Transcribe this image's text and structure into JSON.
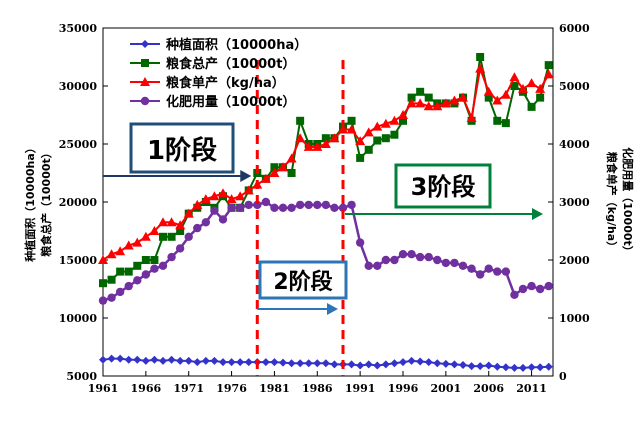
{
  "chart_data": {
    "type": "line",
    "x": [
      1961,
      1962,
      1963,
      1964,
      1965,
      1966,
      1967,
      1968,
      1969,
      1970,
      1971,
      1972,
      1973,
      1974,
      1975,
      1976,
      1977,
      1978,
      1979,
      1980,
      1981,
      1982,
      1983,
      1984,
      1985,
      1986,
      1987,
      1988,
      1989,
      1990,
      1991,
      1992,
      1993,
      1994,
      1995,
      1996,
      1997,
      1998,
      1999,
      2000,
      2001,
      2002,
      2003,
      2004,
      2005,
      2006,
      2007,
      2008,
      2009,
      2010,
      2011,
      2012,
      2013
    ],
    "xticks": [
      1961,
      1966,
      1971,
      1976,
      1981,
      1986,
      1991,
      1996,
      2001,
      2006,
      2011
    ],
    "xlim": [
      1961,
      2013.5
    ],
    "ylim_left": [
      5000,
      35000
    ],
    "yticks_left": [
      5000,
      10000,
      15000,
      20000,
      25000,
      30000,
      35000
    ],
    "ylim_right": [
      0,
      6000
    ],
    "yticks_right": [
      0,
      1000,
      2000,
      3000,
      4000,
      5000,
      6000
    ],
    "ylabel_left": [
      "种植面积（10000ha）",
      "粮食总产（10000t）"
    ],
    "ylabel_right": [
      "粮食单产（kg/ha）",
      "化肥用量（10000t）"
    ],
    "series": [
      {
        "name": "种植面积（10000ha）",
        "axis": "left",
        "color": "#3333cc",
        "marker": "diamond",
        "values": [
          6400,
          6500,
          6500,
          6400,
          6400,
          6300,
          6400,
          6300,
          6400,
          6300,
          6300,
          6200,
          6300,
          6300,
          6200,
          6200,
          6200,
          6200,
          6200,
          6200,
          6200,
          6150,
          6100,
          6100,
          6100,
          6100,
          6100,
          6000,
          6000,
          6000,
          5900,
          6000,
          5900,
          6000,
          6100,
          6200,
          6300,
          6250,
          6200,
          6100,
          6050,
          6000,
          5950,
          5850,
          5850,
          5900,
          5800,
          5750,
          5700,
          5700,
          5750,
          5750,
          5800
        ]
      },
      {
        "name": "粮食总产（10000t）",
        "axis": "left",
        "color": "#006600",
        "marker": "square",
        "values": [
          13000,
          13300,
          14000,
          14000,
          14500,
          15000,
          15000,
          17000,
          17000,
          17500,
          19000,
          19500,
          20000,
          19500,
          20500,
          19500,
          19500,
          21000,
          22500,
          22000,
          23000,
          23000,
          22500,
          27000,
          25000,
          25000,
          25500,
          25500,
          26500,
          27000,
          23800,
          24500,
          25300,
          25500,
          25800,
          27000,
          29000,
          29500,
          29000,
          28500,
          28500,
          28500,
          29000,
          27000,
          32500,
          29000,
          27000,
          26800,
          30000,
          29500,
          28200,
          29000,
          31800
        ]
      },
      {
        "name": "粮食单产（kg/ha）",
        "axis": "right",
        "color": "#ff0000",
        "marker": "triangle",
        "values": [
          2000,
          2100,
          2150,
          2250,
          2300,
          2400,
          2500,
          2650,
          2650,
          2600,
          2800,
          2950,
          3050,
          3100,
          3150,
          3050,
          3100,
          3200,
          3300,
          3400,
          3500,
          3600,
          3750,
          4100,
          3950,
          3950,
          4000,
          4100,
          4250,
          4250,
          4050,
          4200,
          4300,
          4350,
          4400,
          4500,
          4700,
          4700,
          4650,
          4650,
          4700,
          4750,
          4800,
          4450,
          5300,
          4900,
          4750,
          4850,
          5150,
          4950,
          5050,
          4950,
          5200
        ]
      },
      {
        "name": "化肥用量（10000t）",
        "axis": "right",
        "color": "#7030a0",
        "marker": "circle",
        "values": [
          1300,
          1350,
          1450,
          1550,
          1650,
          1750,
          1850,
          1900,
          2050,
          2200,
          2400,
          2550,
          2650,
          2850,
          2700,
          2900,
          2900,
          2950,
          2950,
          3000,
          2900,
          2900,
          2900,
          2950,
          2950,
          2950,
          2950,
          2900,
          2900,
          2950,
          2300,
          1900,
          1900,
          2000,
          2000,
          2100,
          2100,
          2050,
          2050,
          2000,
          1950,
          1950,
          1900,
          1850,
          1750,
          1850,
          1800,
          1800,
          1400,
          1500,
          1550,
          1500,
          1550
        ]
      }
    ],
    "legend": "top-left",
    "annotations": [
      {
        "label": "1阶段",
        "color": "#1f3864",
        "box_color": "#1f4e79"
      },
      {
        "label": "2阶段",
        "color": "#2e75b6",
        "box_color": "#2e75b6"
      },
      {
        "label": "3阶段",
        "color": "#00803a",
        "box_color": "#00803a"
      }
    ],
    "stage_boundaries": [
      1979,
      1989
    ],
    "stage_arrow_ranges": [
      [
        1961,
        1979
      ],
      [
        1979,
        1989
      ],
      [
        1989,
        2013
      ]
    ],
    "boundary_color": "#ff0000"
  }
}
